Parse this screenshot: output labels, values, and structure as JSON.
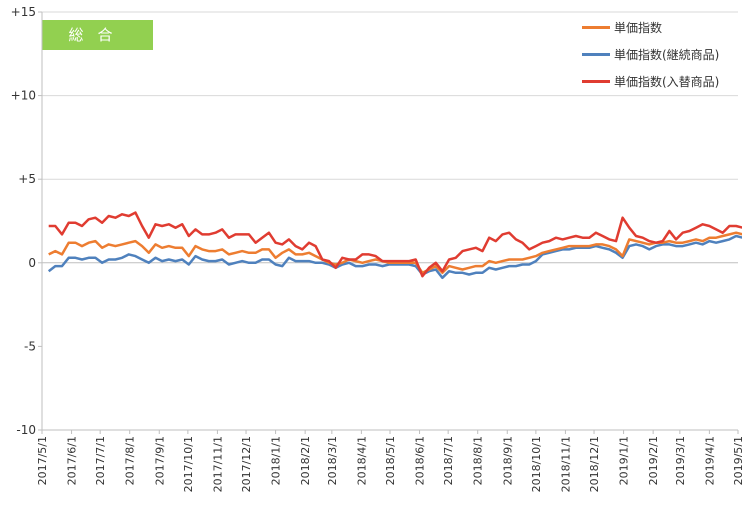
{
  "badge": {
    "label": "総合"
  },
  "colors": {
    "orange": "#ed7d31",
    "blue": "#4f81bd",
    "red": "#e03c31",
    "grid": "#d9d9d9",
    "axis": "#bfbfbf",
    "badge": "#92d050"
  },
  "chart_data": {
    "type": "line",
    "title": "",
    "xlabel": "",
    "ylabel": "",
    "ylim": [
      -10,
      15
    ],
    "yticks": [
      -10,
      -5,
      0,
      5,
      10,
      15
    ],
    "ytick_labels": [
      "-10",
      "-5",
      "0",
      "+5",
      "+10",
      "+15"
    ],
    "grid": "horizontal major gridlines at +5, +10, +15",
    "legend": "top-right",
    "x_tick_labels": [
      "2017/5/1",
      "2017/6/1",
      "2017/7/1",
      "2017/8/1",
      "2017/9/1",
      "2017/10/1",
      "2017/11/1",
      "2017/12/1",
      "2018/1/1",
      "2018/2/1",
      "2018/3/1",
      "2018/4/1",
      "2018/5/1",
      "2018/6/1",
      "2018/7/1",
      "2018/8/1",
      "2018/9/1",
      "2018/10/1",
      "2018/11/1",
      "2018/12/1",
      "2019/1/1",
      "2019/2/1",
      "2019/3/1",
      "2019/4/1",
      "2019/5/1"
    ],
    "x": [
      "2017/5/8",
      "2017/5/15",
      "2017/5/22",
      "2017/5/29",
      "2017/6/5",
      "2017/6/12",
      "2017/6/19",
      "2017/6/26",
      "2017/7/3",
      "2017/7/10",
      "2017/7/17",
      "2017/7/24",
      "2017/7/31",
      "2017/8/7",
      "2017/8/14",
      "2017/8/21",
      "2017/8/28",
      "2017/9/4",
      "2017/9/11",
      "2017/9/18",
      "2017/9/25",
      "2017/10/2",
      "2017/10/9",
      "2017/10/16",
      "2017/10/23",
      "2017/10/30",
      "2017/11/6",
      "2017/11/13",
      "2017/11/20",
      "2017/11/27",
      "2017/12/4",
      "2017/12/11",
      "2017/12/18",
      "2017/12/25",
      "2018/1/1",
      "2018/1/8",
      "2018/1/15",
      "2018/1/22",
      "2018/1/29",
      "2018/2/5",
      "2018/2/12",
      "2018/2/19",
      "2018/2/26",
      "2018/3/5",
      "2018/3/12",
      "2018/3/19",
      "2018/3/26",
      "2018/4/2",
      "2018/4/9",
      "2018/4/16",
      "2018/4/23",
      "2018/4/30",
      "2018/5/7",
      "2018/5/14",
      "2018/5/21",
      "2018/5/28",
      "2018/6/4",
      "2018/6/11",
      "2018/6/18",
      "2018/6/25",
      "2018/7/2",
      "2018/7/9",
      "2018/7/16",
      "2018/7/23",
      "2018/7/30",
      "2018/8/6",
      "2018/8/13",
      "2018/8/20",
      "2018/8/27",
      "2018/9/3",
      "2018/9/10",
      "2018/9/17",
      "2018/9/24",
      "2018/10/1",
      "2018/10/8",
      "2018/10/15",
      "2018/10/22",
      "2018/10/29",
      "2018/11/5",
      "2018/11/12",
      "2018/11/19",
      "2018/11/26",
      "2018/12/3",
      "2018/12/10",
      "2018/12/17",
      "2018/12/24",
      "2018/12/31",
      "2019/1/7",
      "2019/1/14",
      "2019/1/21",
      "2019/1/28",
      "2019/2/4",
      "2019/2/11",
      "2019/2/18",
      "2019/2/25",
      "2019/3/4",
      "2019/3/11",
      "2019/3/18",
      "2019/3/25",
      "2019/4/1",
      "2019/4/8",
      "2019/4/15",
      "2019/4/22",
      "2019/4/29",
      "2019/5/6",
      "2019/5/13"
    ],
    "series": [
      {
        "name": "単価指数",
        "color": "#ed7d31",
        "values": [
          0.5,
          0.7,
          0.5,
          1.2,
          1.2,
          1.0,
          1.2,
          1.3,
          0.9,
          1.1,
          1.0,
          1.1,
          1.2,
          1.3,
          1.0,
          0.6,
          1.1,
          0.9,
          1.0,
          0.9,
          0.9,
          0.4,
          1.0,
          0.8,
          0.7,
          0.7,
          0.8,
          0.5,
          0.6,
          0.7,
          0.6,
          0.6,
          0.8,
          0.8,
          0.3,
          0.6,
          0.8,
          0.5,
          0.5,
          0.6,
          0.4,
          0.2,
          0.0,
          -0.1,
          0.0,
          0.2,
          0.1,
          0.0,
          0.1,
          0.2,
          0.1,
          0.0,
          0.0,
          0.0,
          0.0,
          0.0,
          -0.6,
          -0.4,
          -0.2,
          -0.6,
          -0.2,
          -0.3,
          -0.4,
          -0.3,
          -0.2,
          -0.2,
          0.1,
          0.0,
          0.1,
          0.2,
          0.2,
          0.2,
          0.3,
          0.4,
          0.6,
          0.7,
          0.8,
          0.9,
          1.0,
          1.0,
          1.0,
          1.0,
          1.1,
          1.1,
          1.0,
          0.8,
          0.4,
          1.4,
          1.3,
          1.2,
          1.1,
          1.2,
          1.2,
          1.3,
          1.2,
          1.2,
          1.3,
          1.4,
          1.3,
          1.5,
          1.5,
          1.6,
          1.7,
          1.8,
          1.7,
          1.5
        ]
      },
      {
        "name": "単価指数(継続商品)",
        "color": "#4f81bd",
        "values": [
          -0.5,
          -0.2,
          -0.2,
          0.3,
          0.3,
          0.2,
          0.3,
          0.3,
          0.0,
          0.2,
          0.2,
          0.3,
          0.5,
          0.4,
          0.2,
          0.0,
          0.3,
          0.1,
          0.2,
          0.1,
          0.2,
          -0.1,
          0.4,
          0.2,
          0.1,
          0.1,
          0.2,
          -0.1,
          0.0,
          0.1,
          0.0,
          0.0,
          0.2,
          0.2,
          -0.1,
          -0.2,
          0.3,
          0.1,
          0.1,
          0.1,
          0.0,
          0.0,
          -0.1,
          -0.3,
          -0.1,
          0.0,
          -0.2,
          -0.2,
          -0.1,
          -0.1,
          -0.2,
          -0.1,
          -0.1,
          -0.1,
          -0.1,
          -0.2,
          -0.7,
          -0.5,
          -0.4,
          -0.9,
          -0.5,
          -0.6,
          -0.6,
          -0.7,
          -0.6,
          -0.6,
          -0.3,
          -0.4,
          -0.3,
          -0.2,
          -0.2,
          -0.1,
          -0.1,
          0.1,
          0.5,
          0.6,
          0.7,
          0.8,
          0.8,
          0.9,
          0.9,
          0.9,
          1.0,
          0.9,
          0.8,
          0.6,
          0.3,
          1.0,
          1.1,
          1.0,
          0.8,
          1.0,
          1.1,
          1.1,
          1.0,
          1.0,
          1.1,
          1.2,
          1.1,
          1.3,
          1.2,
          1.3,
          1.4,
          1.6,
          1.5,
          1.1
        ]
      },
      {
        "name": "単価指数(入替商品)",
        "color": "#e03c31",
        "values": [
          2.2,
          2.2,
          1.7,
          2.4,
          2.4,
          2.2,
          2.6,
          2.7,
          2.4,
          2.8,
          2.7,
          2.9,
          2.8,
          3.0,
          2.2,
          1.5,
          2.3,
          2.2,
          2.3,
          2.1,
          2.3,
          1.6,
          2.0,
          1.7,
          1.7,
          1.8,
          2.0,
          1.5,
          1.7,
          1.7,
          1.7,
          1.2,
          1.5,
          1.8,
          1.2,
          1.1,
          1.4,
          1.0,
          0.8,
          1.2,
          1.0,
          0.2,
          0.1,
          -0.3,
          0.3,
          0.2,
          0.2,
          0.5,
          0.5,
          0.4,
          0.1,
          0.1,
          0.1,
          0.1,
          0.1,
          0.2,
          -0.8,
          -0.3,
          0.0,
          -0.5,
          0.2,
          0.3,
          0.7,
          0.8,
          0.9,
          0.7,
          1.5,
          1.3,
          1.7,
          1.8,
          1.4,
          1.2,
          0.8,
          1.0,
          1.2,
          1.3,
          1.5,
          1.4,
          1.5,
          1.6,
          1.5,
          1.5,
          1.8,
          1.6,
          1.4,
          1.3,
          2.7,
          2.1,
          1.6,
          1.5,
          1.3,
          1.2,
          1.3,
          1.9,
          1.4,
          1.8,
          1.9,
          2.1,
          2.3,
          2.2,
          2.0,
          1.8,
          2.2,
          2.2,
          2.1,
          2.0
        ]
      }
    ]
  }
}
